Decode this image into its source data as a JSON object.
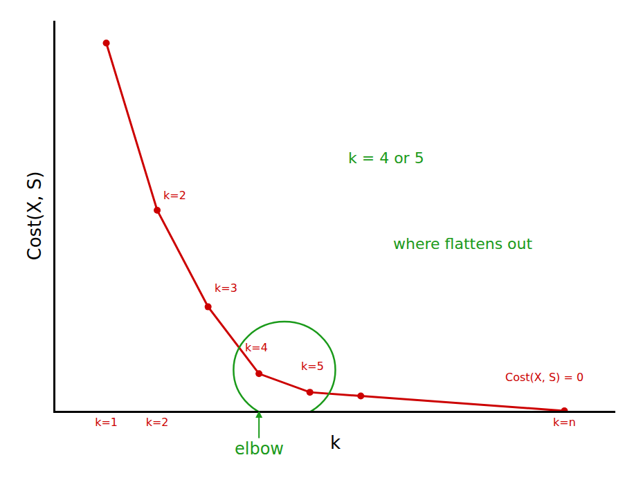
{
  "chart_data": {
    "type": "line",
    "x_label": "k",
    "y_label": "Cost(X, S)",
    "x": [
      1,
      2,
      3,
      4,
      5,
      6,
      10
    ],
    "values": [
      99,
      54,
      28,
      10,
      5,
      4,
      0
    ],
    "color": "#cc0000",
    "marker": "circle",
    "line_style": "solid",
    "xlim": [
      0,
      11
    ],
    "ylim": [
      0,
      105
    ],
    "xticks": [
      {
        "value": 1,
        "label": "k=1"
      },
      {
        "value": 2,
        "label": "k=2"
      },
      {
        "value": 10,
        "label": "k=n"
      }
    ],
    "yticks": [],
    "tick_labels": "x",
    "grid": false,
    "annotations": [
      {
        "text": "k=2",
        "x": 2.35,
        "y": 58,
        "color": "#cc0000"
      },
      {
        "text": "k=3",
        "x": 3.35,
        "y": 33,
        "color": "#cc0000"
      },
      {
        "text": "k=4",
        "x": 3.95,
        "y": 17,
        "color": "#cc0000"
      },
      {
        "text": "k=5",
        "x": 5.05,
        "y": 12,
        "color": "#cc0000"
      },
      {
        "text": "Cost(X, S) = 0",
        "x": 9.6,
        "y": 9,
        "color": "#cc0000"
      },
      {
        "text": "k = 4 or 5",
        "x": 6.5,
        "y": 68,
        "color": "#1a9a1a"
      },
      {
        "text": "where flattens out",
        "x": 8,
        "y": 45,
        "color": "#1a9a1a"
      }
    ],
    "elbow": {
      "text": "elbow",
      "x": 4,
      "y": 0,
      "color": "#1a9a1a"
    }
  }
}
